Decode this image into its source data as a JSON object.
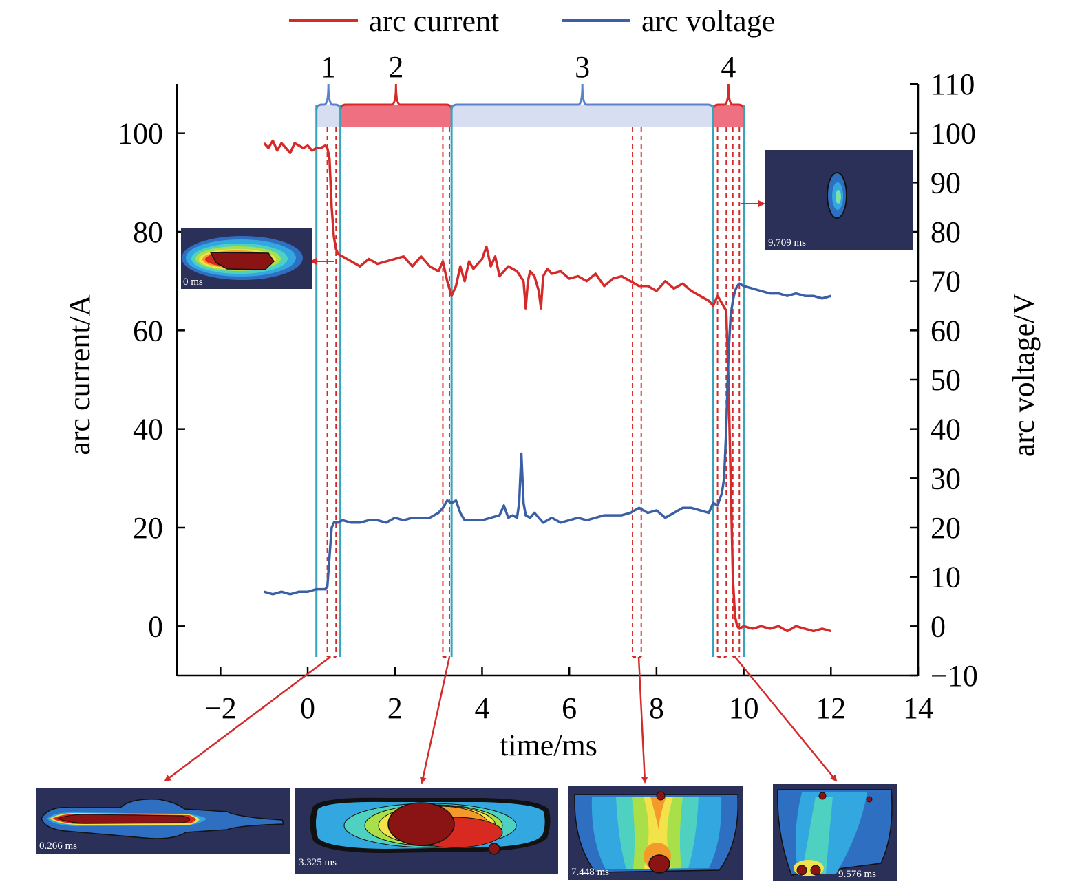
{
  "chart_data": {
    "type": "line",
    "xlabel": "time/ms",
    "ylabel_left": "arc current/A",
    "ylabel_right": "arc voltage/V",
    "xlim": [
      -3,
      14
    ],
    "ylim_left": [
      -10,
      110
    ],
    "ylim_right": [
      -10,
      110
    ],
    "x_ticks": [
      -2,
      0,
      2,
      4,
      6,
      8,
      10,
      12,
      14
    ],
    "y_left_ticks": [
      0,
      20,
      40,
      60,
      80,
      100
    ],
    "y_right_ticks": [
      -10,
      0,
      10,
      20,
      30,
      40,
      50,
      60,
      70,
      80,
      90,
      100,
      110
    ],
    "grid": false,
    "legend": {
      "position": "top"
    },
    "series": [
      {
        "name": "arc current",
        "axis": "left",
        "color": "#d42a2a",
        "x": [
          -1.0,
          -0.9,
          -0.8,
          -0.7,
          -0.6,
          -0.5,
          -0.4,
          -0.3,
          -0.2,
          -0.1,
          0.0,
          0.1,
          0.2,
          0.3,
          0.4,
          0.45,
          0.5,
          0.55,
          0.6,
          0.65,
          0.7,
          0.8,
          1.0,
          1.2,
          1.4,
          1.6,
          1.8,
          2.0,
          2.2,
          2.4,
          2.6,
          2.8,
          3.0,
          3.1,
          3.2,
          3.3,
          3.4,
          3.5,
          3.6,
          3.7,
          3.8,
          4.0,
          4.1,
          4.2,
          4.3,
          4.4,
          4.6,
          4.8,
          4.95,
          5.0,
          5.05,
          5.1,
          5.2,
          5.3,
          5.35,
          5.4,
          5.5,
          5.6,
          5.8,
          6.0,
          6.2,
          6.4,
          6.6,
          6.8,
          7.0,
          7.2,
          7.4,
          7.6,
          7.8,
          8.0,
          8.2,
          8.4,
          8.6,
          8.8,
          9.0,
          9.2,
          9.3,
          9.4,
          9.5,
          9.6,
          9.65,
          9.7,
          9.75,
          9.8,
          9.85,
          9.9,
          10.0,
          10.2,
          10.4,
          10.6,
          10.8,
          11.0,
          11.2,
          11.4,
          11.6,
          11.8,
          12.0
        ],
        "values": [
          98.0,
          97.0,
          98.5,
          96.5,
          98.0,
          97.0,
          96.0,
          98.0,
          97.5,
          97.0,
          97.5,
          96.5,
          97.0,
          97.0,
          97.5,
          97.0,
          95.0,
          85.0,
          79.0,
          76.5,
          75.5,
          75.0,
          74.0,
          73.0,
          74.5,
          73.5,
          74.0,
          74.5,
          75.0,
          73.0,
          75.0,
          73.0,
          72.0,
          74.0,
          70.0,
          67.0,
          69.0,
          73.0,
          70.0,
          74.0,
          72.5,
          74.5,
          77.0,
          73.0,
          75.0,
          71.0,
          73.0,
          72.0,
          70.0,
          64.5,
          70.0,
          72.0,
          71.0,
          68.0,
          64.5,
          71.0,
          72.5,
          71.5,
          72.0,
          70.5,
          71.0,
          70.0,
          71.5,
          69.0,
          70.5,
          71.0,
          70.0,
          69.0,
          69.0,
          68.0,
          70.0,
          68.5,
          69.5,
          68.0,
          67.0,
          66.0,
          65.0,
          67.0,
          65.5,
          64.0,
          50.0,
          30.0,
          10.0,
          2.0,
          0.0,
          -0.5,
          0.0,
          -0.5,
          0.0,
          -0.5,
          0.0,
          -1.0,
          0.0,
          -0.5,
          -1.0,
          -0.5,
          -1.0
        ]
      },
      {
        "name": "arc voltage",
        "axis": "right",
        "color": "#3a5fa4",
        "x": [
          -1.0,
          -0.8,
          -0.6,
          -0.4,
          -0.2,
          0.0,
          0.2,
          0.4,
          0.45,
          0.5,
          0.55,
          0.6,
          0.7,
          0.8,
          1.0,
          1.2,
          1.4,
          1.6,
          1.8,
          2.0,
          2.2,
          2.4,
          2.6,
          2.8,
          3.0,
          3.1,
          3.2,
          3.3,
          3.4,
          3.5,
          3.6,
          3.8,
          4.0,
          4.2,
          4.4,
          4.5,
          4.6,
          4.7,
          4.8,
          4.85,
          4.9,
          4.95,
          5.0,
          5.1,
          5.2,
          5.4,
          5.6,
          5.8,
          6.0,
          6.2,
          6.4,
          6.6,
          6.8,
          7.0,
          7.2,
          7.4,
          7.6,
          7.8,
          8.0,
          8.2,
          8.4,
          8.6,
          8.8,
          9.0,
          9.2,
          9.3,
          9.4,
          9.5,
          9.55,
          9.6,
          9.65,
          9.7,
          9.75,
          9.8,
          9.85,
          9.9,
          10.0,
          10.2,
          10.4,
          10.6,
          10.8,
          11.0,
          11.2,
          11.4,
          11.6,
          11.8,
          12.0
        ],
        "values": [
          7.0,
          6.5,
          7.0,
          6.5,
          7.0,
          7.0,
          7.5,
          7.5,
          8.0,
          14.0,
          20.0,
          21.0,
          21.0,
          21.5,
          21.0,
          21.0,
          21.5,
          21.5,
          21.0,
          22.0,
          21.5,
          22.0,
          22.0,
          22.0,
          23.0,
          24.0,
          25.5,
          25.0,
          25.5,
          23.0,
          21.5,
          21.5,
          21.5,
          22.0,
          22.5,
          24.5,
          22.0,
          22.5,
          22.0,
          25.0,
          35.0,
          25.0,
          22.5,
          22.0,
          23.0,
          21.0,
          22.0,
          21.0,
          21.5,
          22.0,
          21.5,
          22.0,
          22.5,
          22.5,
          22.5,
          23.0,
          24.0,
          23.0,
          23.5,
          22.0,
          23.0,
          24.0,
          24.0,
          23.5,
          23.0,
          25.0,
          24.5,
          27.0,
          30.0,
          40.0,
          55.0,
          63.0,
          66.0,
          68.0,
          69.0,
          69.5,
          69.0,
          68.5,
          68.0,
          67.5,
          67.5,
          67.0,
          67.5,
          67.0,
          67.0,
          66.5,
          67.0
        ]
      }
    ],
    "phases": [
      {
        "label": "1",
        "start": 0.2,
        "end": 0.75,
        "color": "#d8def2",
        "edge": "#5b82cc"
      },
      {
        "label": "2",
        "start": 0.75,
        "end": 3.3,
        "color": "#ef7081",
        "edge": "#d42a2a"
      },
      {
        "label": "3",
        "start": 3.3,
        "end": 9.3,
        "color": "#d8def2",
        "edge": "#5b82cc"
      },
      {
        "label": "4",
        "start": 9.3,
        "end": 10.0,
        "color": "#ef7081",
        "edge": "#d42a2a"
      }
    ],
    "solid_markers_x": [
      0.2,
      0.75,
      3.3,
      9.3,
      10.0
    ],
    "dashed_markers_x": [
      0.45,
      0.65,
      3.1,
      3.25,
      7.45,
      7.65,
      9.4,
      9.6,
      9.75,
      9.9
    ],
    "insets": [
      {
        "label": "0 ms",
        "kind": "wide"
      },
      {
        "label": "9.709 ms",
        "kind": "small"
      },
      {
        "label": "0.266 ms",
        "kind": "thin"
      },
      {
        "label": "3.325 ms",
        "kind": "mid"
      },
      {
        "label": "7.448 ms",
        "kind": "hourglass"
      },
      {
        "label": "9.576 ms",
        "kind": "bottom"
      }
    ]
  }
}
